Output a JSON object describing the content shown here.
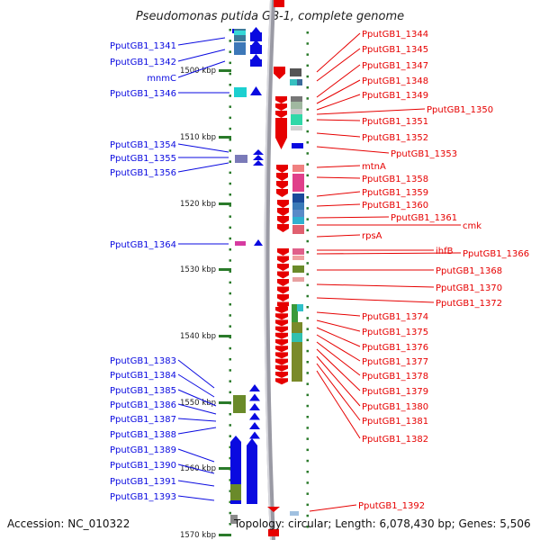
{
  "title": "Pseudomonas putida GB-1, complete genome",
  "accession": "Accession: NC_010322",
  "summary": "Topology: circular; Length: 6,078,430 bp; Genes: 5,506",
  "scale_labels": [
    "1500 kbp",
    "1510 kbp",
    "1520 kbp",
    "1530 kbp",
    "1540 kbp",
    "1550 kbp",
    "1560 kbp",
    "1570 kbp"
  ],
  "left_genes": [
    "PputGB1_1341",
    "PputGB1_1342",
    "mnmC",
    "PputGB1_1346",
    "PputGB1_1354",
    "PputGB1_1355",
    "PputGB1_1356",
    "PputGB1_1364",
    "PputGB1_1383",
    "PputGB1_1384",
    "PputGB1_1385",
    "PputGB1_1386",
    "PputGB1_1387",
    "PputGB1_1388",
    "PputGB1_1389",
    "PputGB1_1390",
    "PputGB1_1391",
    "PputGB1_1393"
  ],
  "right_genes": [
    "PputGB1_1344",
    "PputGB1_1345",
    "PputGB1_1347",
    "PputGB1_1348",
    "PputGB1_1349",
    "PputGB1_1350",
    "PputGB1_1351",
    "PputGB1_1352",
    "PputGB1_1353",
    "mtnA",
    "PputGB1_1358",
    "PputGB1_1359",
    "PputGB1_1360",
    "PputGB1_1361",
    "cmk",
    "rpsA",
    "ihfB",
    "PputGB1_1366",
    "PputGB1_1368",
    "PputGB1_1370",
    "PputGB1_1372",
    "PputGB1_1374",
    "PputGB1_1375",
    "PputGB1_1376",
    "PputGB1_1377",
    "PputGB1_1378",
    "PputGB1_1379",
    "PputGB1_1380",
    "PputGB1_1381",
    "PputGB1_1382",
    "PputGB1_1392"
  ],
  "colors": {
    "forward": "#0a0ae0",
    "reverse": "#e60000",
    "backbone": "#9a9aa4",
    "tick": "#2a7a2a"
  }
}
